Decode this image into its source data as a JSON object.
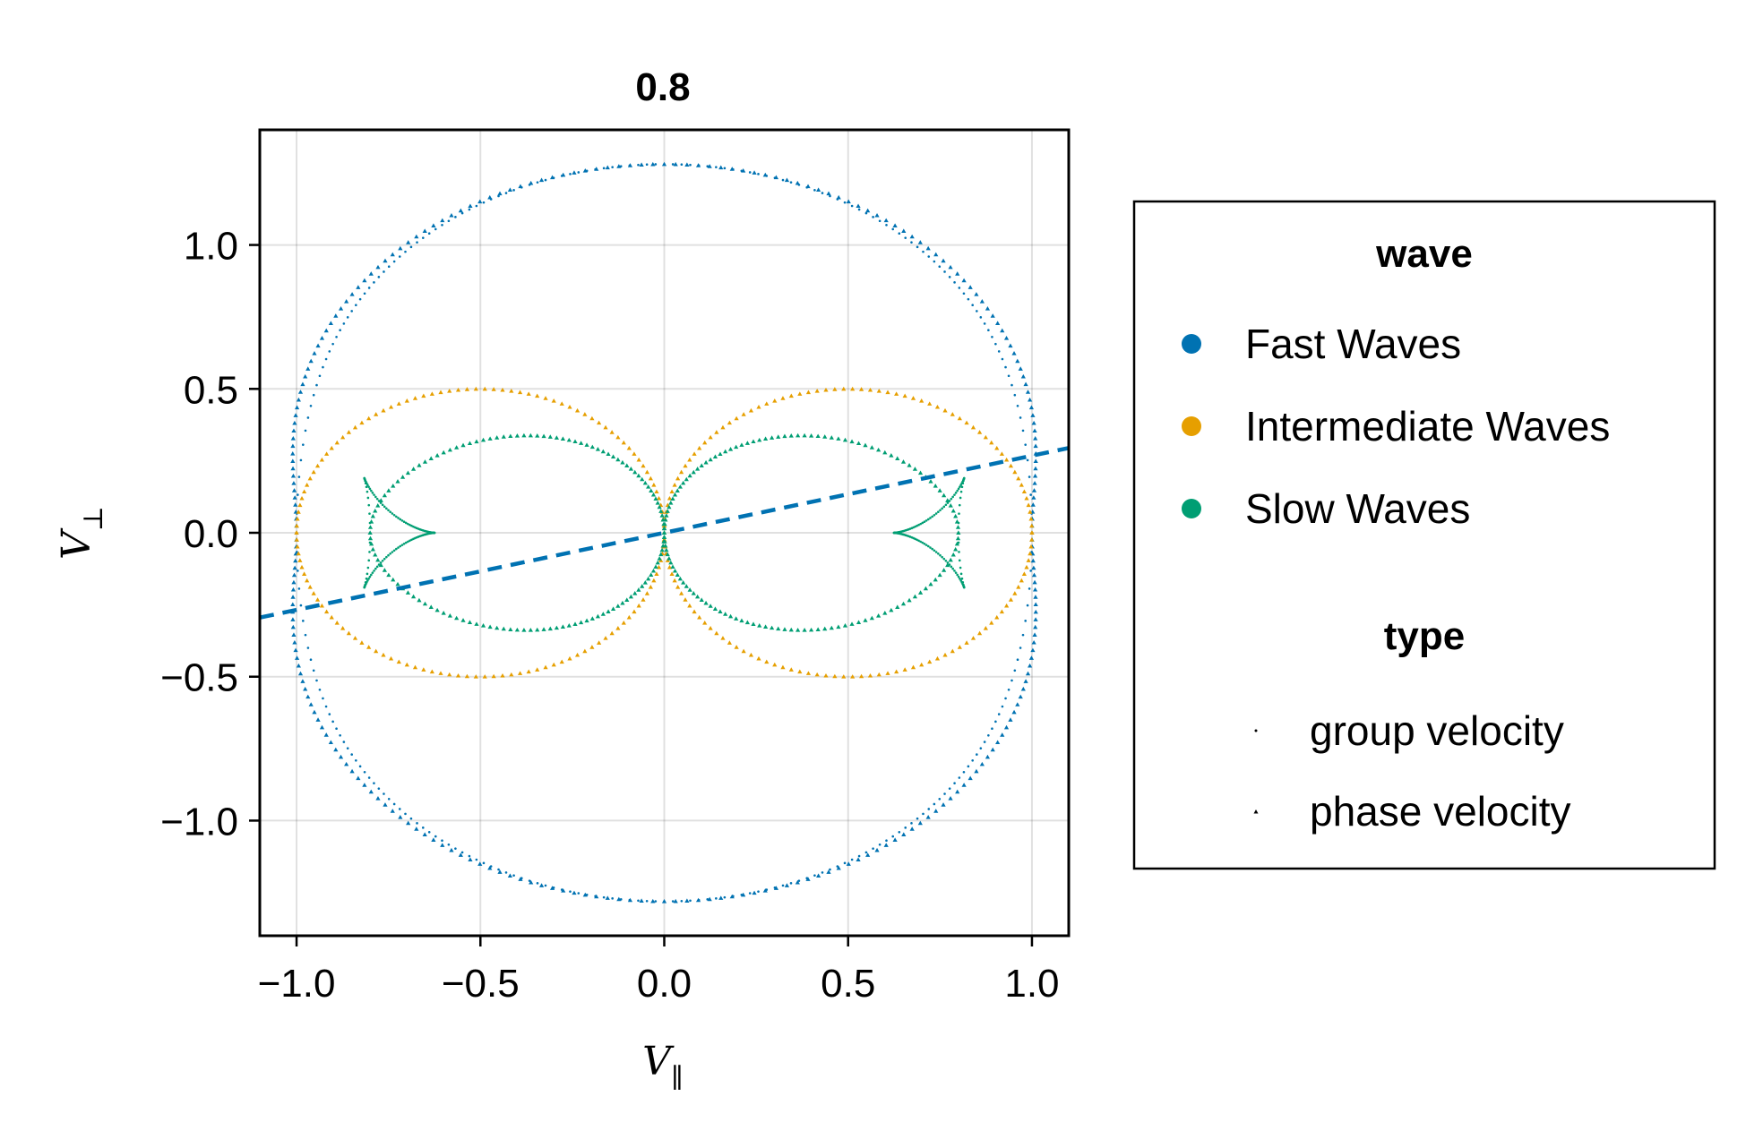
{
  "chart_data": {
    "type": "scatter",
    "title": "0.8",
    "xlabel": "V",
    "xlabel_subscript": "∥",
    "ylabel": "V",
    "ylabel_subscript": "⊥",
    "xlim": [
      -1.1,
      1.1
    ],
    "ylim": [
      -1.4,
      1.4
    ],
    "xticks": [
      -1.0,
      -0.5,
      0.0,
      0.5,
      1.0
    ],
    "xtick_labels": [
      "−1.0",
      "−0.5",
      "0.0",
      "0.5",
      "1.0"
    ],
    "yticks": [
      -1.0,
      -0.5,
      0.0,
      0.5,
      1.0
    ],
    "ytick_labels": [
      "−1.0",
      "−0.5",
      "0.0",
      "0.5",
      "1.0"
    ],
    "grid": true,
    "legend_position": "right",
    "parameters": {
      "cs_over_va": 0.8
    },
    "series": [
      {
        "name": "Fast Waves",
        "color": "#0072b2",
        "description_points": [
          [
            0,
            1.28
          ],
          [
            1.0,
            0
          ],
          [
            0,
            -1.28
          ],
          [
            -1.0,
            0
          ]
        ]
      },
      {
        "name": "Intermediate Waves",
        "color": "#e69f00",
        "description_points": [
          [
            0.5,
            0.5
          ],
          [
            1.0,
            0
          ],
          [
            0.5,
            -0.5
          ],
          [
            0,
            0
          ],
          [
            -0.5,
            0.5
          ],
          [
            -1.0,
            0
          ],
          [
            -0.5,
            -0.5
          ]
        ]
      },
      {
        "name": "Slow Waves",
        "color": "#009e73",
        "description_points": [
          [
            0.37,
            0.34
          ],
          [
            0.8,
            0
          ],
          [
            0.37,
            -0.34
          ],
          [
            0,
            0
          ],
          [
            0.62,
            0
          ],
          [
            0.81,
            0.19
          ],
          [
            0.81,
            -0.19
          ]
        ]
      }
    ],
    "reference_line": {
      "color": "#0072b2",
      "style": "dashed",
      "slope": 0.2679,
      "intercept": 0
    },
    "legend": {
      "groups": [
        {
          "title": "wave",
          "entries": [
            {
              "label": "Fast Waves",
              "color": "#0072b2",
              "marker": "circle"
            },
            {
              "label": "Intermediate Waves",
              "color": "#e69f00",
              "marker": "circle"
            },
            {
              "label": "Slow Waves",
              "color": "#009e73",
              "marker": "circle"
            }
          ]
        },
        {
          "title": "type",
          "entries": [
            {
              "label": "group velocity",
              "color": "#000000",
              "marker": "dot"
            },
            {
              "label": "phase velocity",
              "color": "#000000",
              "marker": "triangle"
            }
          ]
        }
      ]
    }
  }
}
